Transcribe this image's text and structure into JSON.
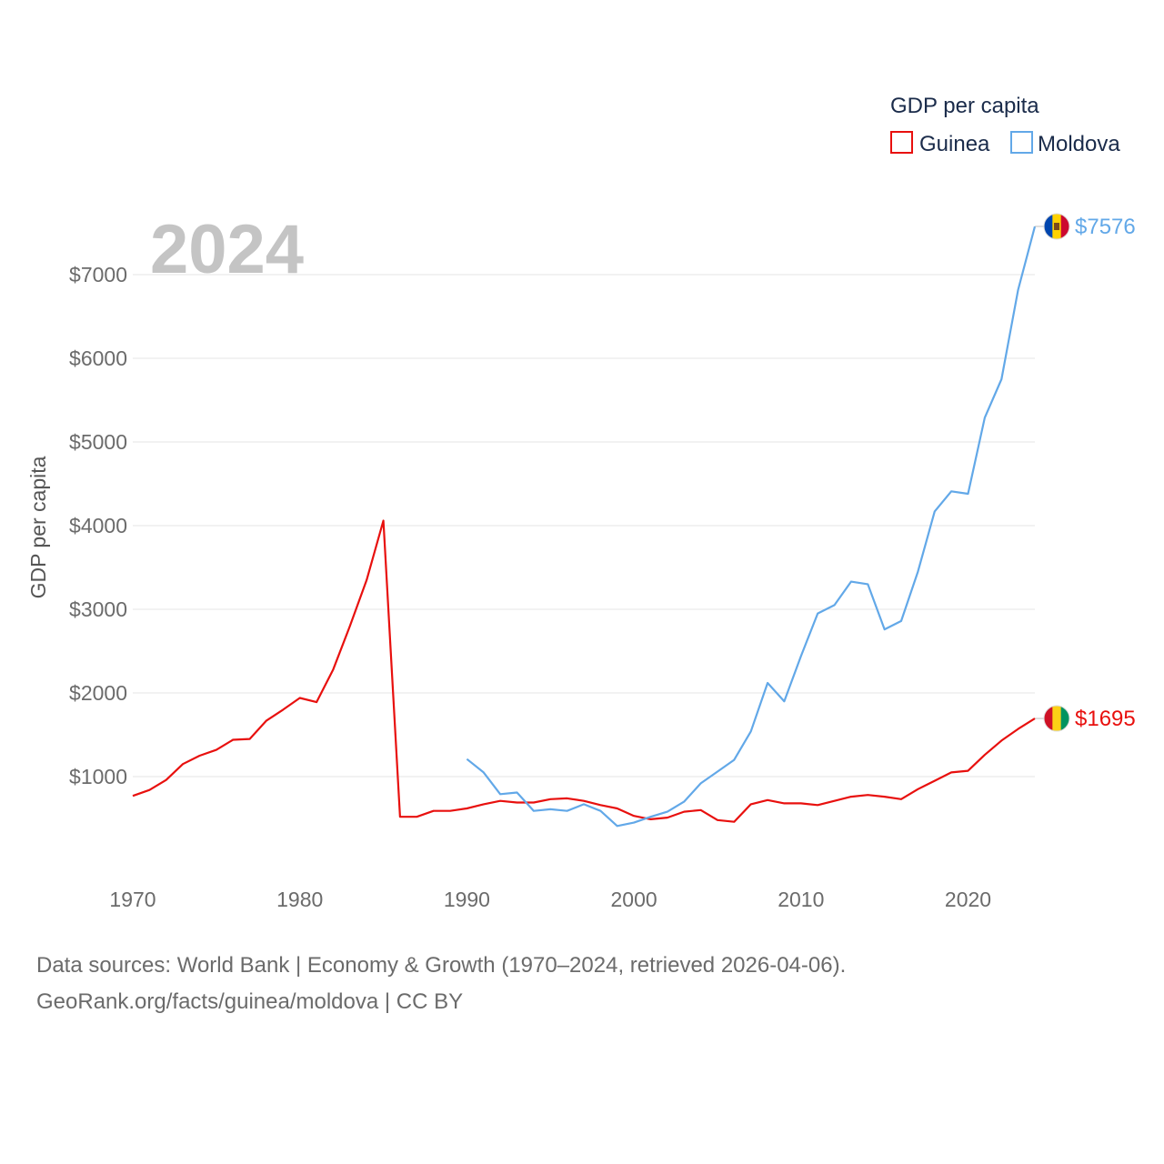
{
  "chart_data": {
    "type": "line",
    "year_label": "2024",
    "legend": {
      "title": "GDP per capita",
      "position": "top-right"
    },
    "ylabel": "GDP per capita",
    "xlabel": "",
    "xlim": [
      1970,
      2024
    ],
    "ylim": [
      0,
      7600
    ],
    "grid": true,
    "x_ticks": [
      1970,
      1980,
      1990,
      2000,
      2010,
      2020
    ],
    "y_ticks": [
      1000,
      2000,
      3000,
      4000,
      5000,
      6000,
      7000
    ],
    "y_tick_labels": [
      "$1000",
      "$2000",
      "$3000",
      "$4000",
      "$5000",
      "$6000",
      "$7000"
    ],
    "series": [
      {
        "name": "Guinea",
        "color": "#e8100e",
        "end_label": "$1695",
        "flag": "guinea-flag",
        "x": [
          1970,
          1971,
          1972,
          1973,
          1974,
          1975,
          1976,
          1977,
          1978,
          1979,
          1980,
          1981,
          1982,
          1983,
          1984,
          1985,
          1986,
          1987,
          1988,
          1989,
          1990,
          1991,
          1992,
          1993,
          1994,
          1995,
          1996,
          1997,
          1998,
          1999,
          2000,
          2001,
          2002,
          2003,
          2004,
          2005,
          2006,
          2007,
          2008,
          2009,
          2010,
          2011,
          2012,
          2013,
          2014,
          2015,
          2016,
          2017,
          2018,
          2019,
          2020,
          2021,
          2022,
          2023,
          2024
        ],
        "values": [
          770,
          840,
          960,
          1150,
          1250,
          1320,
          1440,
          1450,
          1670,
          1800,
          1940,
          1890,
          2280,
          2800,
          3350,
          4060,
          520,
          520,
          590,
          590,
          620,
          670,
          710,
          690,
          690,
          730,
          740,
          710,
          660,
          620,
          530,
          490,
          510,
          580,
          600,
          480,
          460,
          670,
          720,
          680,
          680,
          660,
          710,
          760,
          780,
          760,
          730,
          850,
          950,
          1050,
          1070,
          1260,
          1430,
          1570,
          1695
        ]
      },
      {
        "name": "Moldova",
        "color": "#62a8e8",
        "end_label": "$7576",
        "flag": "moldova-flag",
        "x": [
          1990,
          1991,
          1992,
          1993,
          1994,
          1995,
          1996,
          1997,
          1998,
          1999,
          2000,
          2001,
          2002,
          2003,
          2004,
          2005,
          2006,
          2007,
          2008,
          2009,
          2010,
          2011,
          2012,
          2013,
          2014,
          2015,
          2016,
          2017,
          2018,
          2019,
          2020,
          2021,
          2022,
          2023,
          2024
        ],
        "values": [
          1210,
          1050,
          790,
          810,
          590,
          610,
          590,
          670,
          590,
          410,
          450,
          520,
          580,
          700,
          920,
          1060,
          1200,
          1540,
          2120,
          1900,
          2440,
          2950,
          3050,
          3330,
          3300,
          2760,
          2860,
          3450,
          4170,
          4410,
          4380,
          5290,
          5750,
          6820,
          7576
        ]
      }
    ]
  },
  "footer": {
    "line1": "Data sources: World Bank | Economy & Growth (1970–2024, retrieved 2026-04-06).",
    "line2": "GeoRank.org/facts/guinea/moldova | CC BY"
  }
}
